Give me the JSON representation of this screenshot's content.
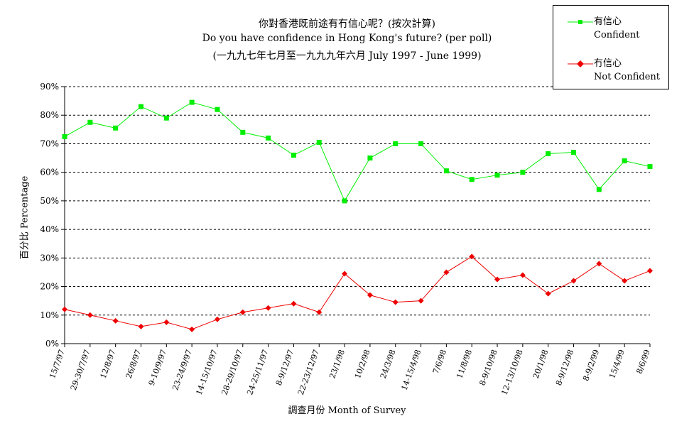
{
  "chart_data": {
    "type": "line",
    "title": "你對香港既前途有冇信心呢？(按次計算)",
    "subtitle": "Do you have confidence in Hong Kong's future? (per poll)",
    "subtitle2": "(一九九七年七月至一九九九年六月 July 1997 - June 1999)",
    "xlabel": "調查月份 Month of Survey",
    "ylabel": "百分比 Percentage",
    "ylim": [
      0,
      90
    ],
    "yticks": [
      "0%",
      "10%",
      "20%",
      "30%",
      "40%",
      "50%",
      "60%",
      "70%",
      "80%",
      "90%"
    ],
    "grid": true,
    "legend_position": "top-right",
    "categories": [
      "15/7/97",
      "29-30/7/97",
      "12/8/97",
      "26/8/97",
      "9-10/9/97",
      "23-24/9/97",
      "14-15/10/97",
      "28-29/10/97",
      "24-25/11/97",
      "8-9/12/97",
      "22-23/12/97",
      "23/1/98",
      "10/2/98",
      "24/3/98",
      "14-15/4/98",
      "7/6/98",
      "11/8/98",
      "8-9/10/98",
      "12-13/10/98",
      "20/1/98",
      "8-9/12/98",
      "8-9/2/99",
      "15/4/99",
      "8/6/99"
    ],
    "series": [
      {
        "name": "有信心",
        "name_en": "Confident",
        "color": "#00ee00",
        "values": [
          72.5,
          77.5,
          75.5,
          83,
          79,
          84.5,
          82,
          74,
          72,
          66,
          70.5,
          50,
          65,
          70,
          70,
          60.5,
          57.5,
          59,
          60,
          66.5,
          67,
          54,
          64,
          62
        ]
      },
      {
        "name": "冇信心",
        "name_en": "Not Confident",
        "color": "#ee0000",
        "values": [
          12,
          10,
          8,
          6,
          7.5,
          5,
          8.5,
          11,
          12.5,
          14,
          11,
          24.5,
          17,
          14.5,
          15,
          25,
          30.5,
          22.5,
          24,
          17.5,
          22,
          28,
          22,
          25.5
        ]
      }
    ]
  }
}
